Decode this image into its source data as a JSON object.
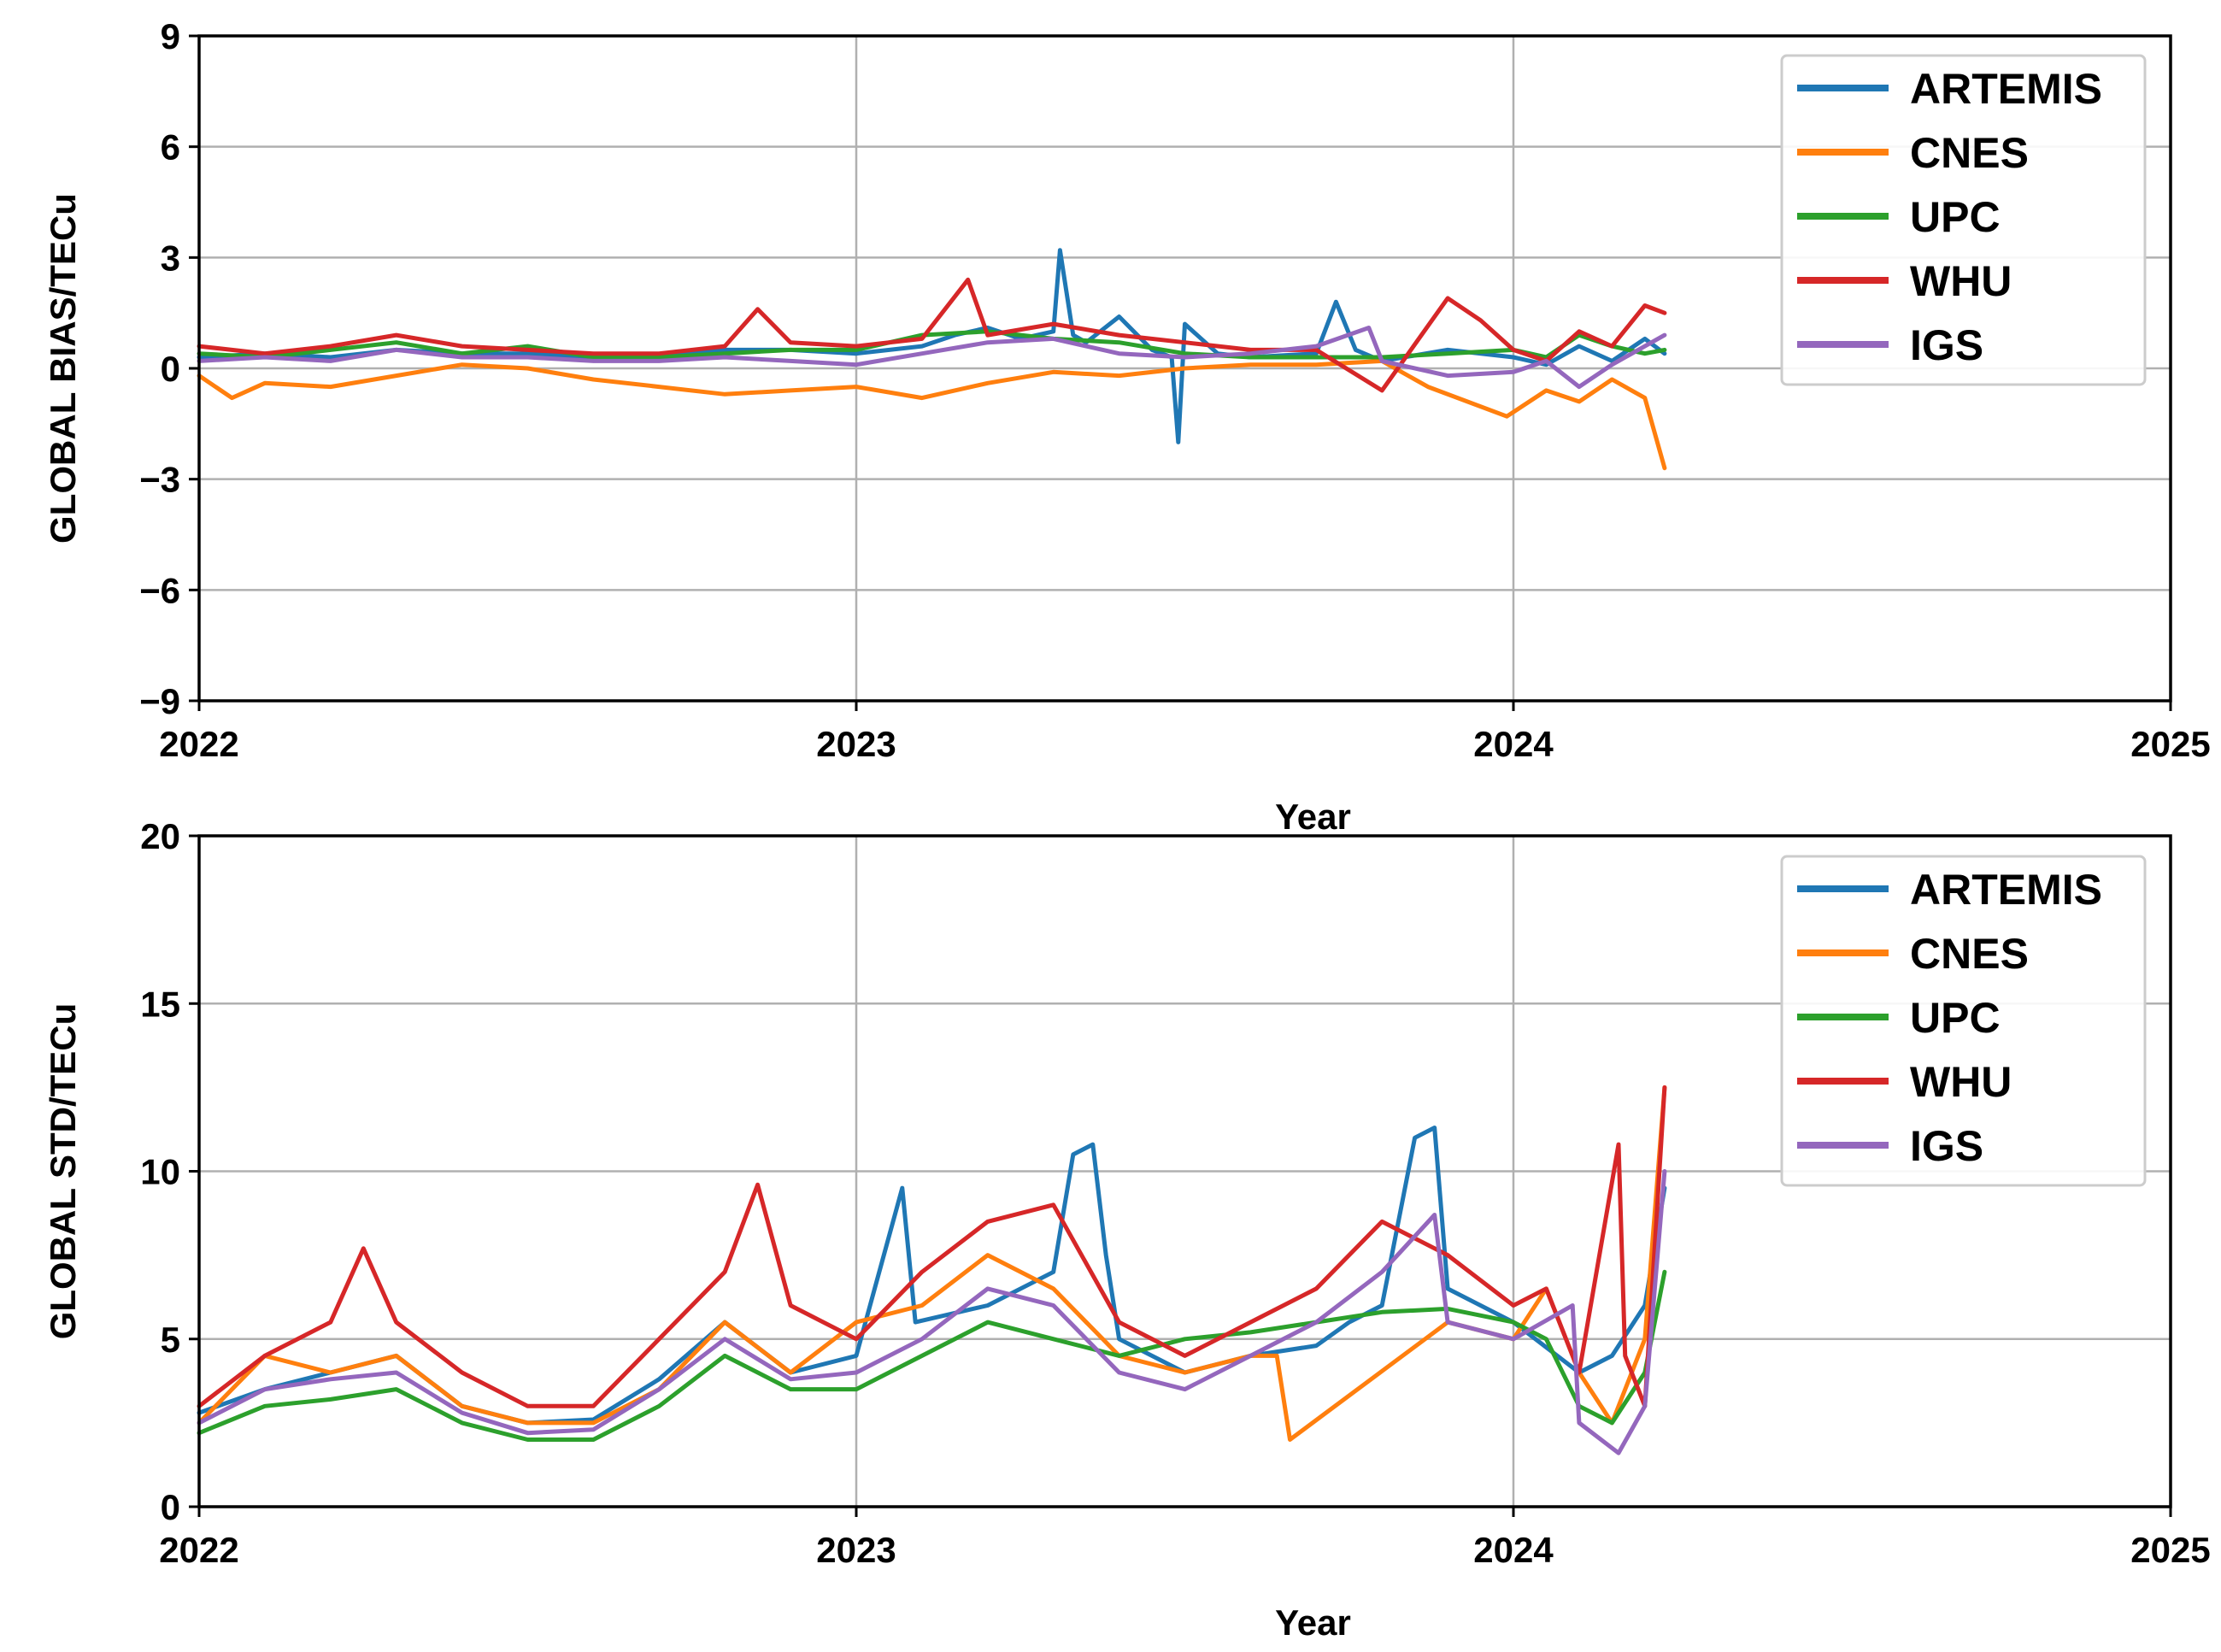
{
  "colors": {
    "ARTEMIS": "#1f77b4",
    "CNES": "#ff7f0e",
    "UPC": "#2ca02c",
    "WHU": "#d62728",
    "IGS": "#9467bd",
    "grid": "#b0b0b0",
    "frame": "#000000",
    "legend_edge": "#cccccc"
  },
  "chart_data": [
    {
      "type": "line",
      "title": "",
      "xlabel": "Year",
      "ylabel": "GLOBAL BIAS/TECu",
      "xlim": [
        2022,
        2025
      ],
      "ylim": [
        -9,
        9
      ],
      "grid": true,
      "legend": "top-right",
      "x_ticks": [
        2022,
        2023,
        2024,
        2025
      ],
      "x_tick_labels": [
        "2022",
        "2023",
        "2024",
        "2025"
      ],
      "y_ticks": [
        -9,
        -6,
        -3,
        0,
        3,
        6,
        9
      ],
      "y_tick_labels": [
        "−9",
        "−6",
        "−3",
        "0",
        "3",
        "6",
        "9"
      ],
      "series": [
        {
          "name": "ARTEMIS",
          "x": [
            2022.0,
            2022.1,
            2022.2,
            2022.3,
            2022.4,
            2022.5,
            2022.6,
            2022.7,
            2022.8,
            2022.9,
            2023.0,
            2023.1,
            2023.15,
            2023.2,
            2023.25,
            2023.3,
            2023.31,
            2023.33,
            2023.35,
            2023.4,
            2023.45,
            2023.48,
            2023.49,
            2023.5,
            2023.55,
            2023.6,
            2023.7,
            2023.73,
            2023.76,
            2023.8,
            2023.9,
            2024.0,
            2024.05,
            2024.1,
            2024.15,
            2024.2,
            2024.23
          ],
          "y": [
            0.3,
            0.4,
            0.3,
            0.5,
            0.4,
            0.4,
            0.3,
            0.3,
            0.5,
            0.5,
            0.4,
            0.6,
            0.9,
            1.1,
            0.8,
            1.0,
            3.2,
            0.9,
            0.7,
            1.4,
            0.5,
            0.3,
            -2.0,
            1.2,
            0.4,
            0.3,
            0.4,
            1.8,
            0.5,
            0.2,
            0.5,
            0.3,
            0.1,
            0.6,
            0.2,
            0.8,
            0.4
          ]
        },
        {
          "name": "CNES",
          "x": [
            2022.0,
            2022.05,
            2022.1,
            2022.2,
            2022.3,
            2022.4,
            2022.5,
            2022.6,
            2022.7,
            2022.8,
            2022.9,
            2023.0,
            2023.1,
            2023.2,
            2023.3,
            2023.4,
            2023.5,
            2023.6,
            2023.7,
            2023.8,
            2023.87,
            2023.99,
            2024.05,
            2024.1,
            2024.15,
            2024.2,
            2024.23
          ],
          "y": [
            -0.2,
            -0.8,
            -0.4,
            -0.5,
            -0.2,
            0.1,
            0.0,
            -0.3,
            -0.5,
            -0.7,
            -0.6,
            -0.5,
            -0.8,
            -0.4,
            -0.1,
            -0.2,
            0.0,
            0.1,
            0.1,
            0.2,
            -0.5,
            -1.3,
            -0.6,
            -0.9,
            -0.3,
            -0.8,
            -2.7
          ]
        },
        {
          "name": "UPC",
          "x": [
            2022.0,
            2022.1,
            2022.2,
            2022.3,
            2022.4,
            2022.5,
            2022.6,
            2022.7,
            2022.8,
            2022.9,
            2023.0,
            2023.1,
            2023.2,
            2023.3,
            2023.4,
            2023.5,
            2023.6,
            2023.7,
            2023.8,
            2023.9,
            2024.0,
            2024.05,
            2024.1,
            2024.15,
            2024.2,
            2024.23
          ],
          "y": [
            0.4,
            0.3,
            0.5,
            0.7,
            0.4,
            0.6,
            0.3,
            0.3,
            0.4,
            0.5,
            0.5,
            0.9,
            1.0,
            0.8,
            0.7,
            0.4,
            0.3,
            0.3,
            0.3,
            0.4,
            0.5,
            0.3,
            0.9,
            0.6,
            0.4,
            0.5
          ]
        },
        {
          "name": "WHU",
          "x": [
            2022.0,
            2022.1,
            2022.2,
            2022.3,
            2022.4,
            2022.5,
            2022.6,
            2022.7,
            2022.8,
            2022.85,
            2022.9,
            2023.0,
            2023.1,
            2023.17,
            2023.2,
            2023.3,
            2023.4,
            2023.5,
            2023.6,
            2023.7,
            2023.8,
            2023.9,
            2023.95,
            2024.0,
            2024.05,
            2024.1,
            2024.15,
            2024.2,
            2024.23
          ],
          "y": [
            0.6,
            0.4,
            0.6,
            0.9,
            0.6,
            0.5,
            0.4,
            0.4,
            0.6,
            1.6,
            0.7,
            0.6,
            0.8,
            2.4,
            0.9,
            1.2,
            0.9,
            0.7,
            0.5,
            0.5,
            -0.6,
            1.9,
            1.3,
            0.5,
            0.2,
            1.0,
            0.6,
            1.7,
            1.5
          ]
        },
        {
          "name": "IGS",
          "x": [
            2022.0,
            2022.1,
            2022.2,
            2022.3,
            2022.4,
            2022.5,
            2022.6,
            2022.7,
            2022.8,
            2022.9,
            2023.0,
            2023.1,
            2023.2,
            2023.3,
            2023.4,
            2023.5,
            2023.6,
            2023.7,
            2023.78,
            2023.8,
            2023.9,
            2024.0,
            2024.05,
            2024.1,
            2024.15,
            2024.2,
            2024.23
          ],
          "y": [
            0.2,
            0.3,
            0.2,
            0.5,
            0.3,
            0.3,
            0.2,
            0.2,
            0.3,
            0.2,
            0.1,
            0.4,
            0.7,
            0.8,
            0.4,
            0.3,
            0.4,
            0.6,
            1.1,
            0.2,
            -0.2,
            -0.1,
            0.2,
            -0.5,
            0.1,
            0.6,
            0.9
          ]
        }
      ]
    },
    {
      "type": "line",
      "title": "",
      "xlabel": "Year",
      "ylabel": "GLOBAL STD/TECu",
      "xlim": [
        2022,
        2025
      ],
      "ylim": [
        0,
        20
      ],
      "grid": true,
      "legend": "top-right",
      "x_ticks": [
        2022,
        2023,
        2024,
        2025
      ],
      "x_tick_labels": [
        "2022",
        "2023",
        "2024",
        "2025"
      ],
      "y_ticks": [
        0,
        5,
        10,
        15,
        20
      ],
      "y_tick_labels": [
        "0",
        "5",
        "10",
        "15",
        "20"
      ],
      "series": [
        {
          "name": "ARTEMIS",
          "x": [
            2022.0,
            2022.1,
            2022.2,
            2022.3,
            2022.4,
            2022.5,
            2022.6,
            2022.7,
            2022.8,
            2022.9,
            2023.0,
            2023.07,
            2023.09,
            2023.2,
            2023.3,
            2023.33,
            2023.36,
            2023.38,
            2023.4,
            2023.5,
            2023.6,
            2023.7,
            2023.75,
            2023.8,
            2023.85,
            2023.88,
            2023.9,
            2024.0,
            2024.1,
            2024.15,
            2024.2,
            2024.23
          ],
          "y": [
            2.8,
            3.5,
            4.0,
            4.5,
            3.0,
            2.5,
            2.6,
            3.8,
            5.5,
            4.0,
            4.5,
            9.5,
            5.5,
            6.0,
            7.0,
            10.5,
            10.8,
            7.5,
            5.0,
            4.0,
            4.5,
            4.8,
            5.5,
            6.0,
            11.0,
            11.3,
            6.5,
            5.5,
            4.0,
            4.5,
            6.0,
            9.5
          ]
        },
        {
          "name": "CNES",
          "x": [
            2022.0,
            2022.1,
            2022.2,
            2022.3,
            2022.4,
            2022.5,
            2022.6,
            2022.7,
            2022.8,
            2022.9,
            2023.0,
            2023.1,
            2023.2,
            2023.3,
            2023.4,
            2023.5,
            2023.6,
            2023.64,
            2023.66,
            2023.9,
            2024.0,
            2024.05,
            2024.1,
            2024.15,
            2024.2,
            2024.23
          ],
          "y": [
            2.5,
            4.5,
            4.0,
            4.5,
            3.0,
            2.5,
            2.5,
            3.5,
            5.5,
            4.0,
            5.5,
            6.0,
            7.5,
            6.5,
            4.5,
            4.0,
            4.5,
            4.5,
            2.0,
            5.5,
            5.0,
            6.5,
            4.0,
            2.5,
            5.0,
            12.5
          ]
        },
        {
          "name": "UPC",
          "x": [
            2022.0,
            2022.1,
            2022.2,
            2022.3,
            2022.4,
            2022.5,
            2022.6,
            2022.7,
            2022.8,
            2022.9,
            2023.0,
            2023.1,
            2023.2,
            2023.3,
            2023.4,
            2023.5,
            2023.6,
            2023.7,
            2023.8,
            2023.9,
            2024.0,
            2024.05,
            2024.1,
            2024.15,
            2024.2,
            2024.23
          ],
          "y": [
            2.2,
            3.0,
            3.2,
            3.5,
            2.5,
            2.0,
            2.0,
            3.0,
            4.5,
            3.5,
            3.5,
            4.5,
            5.5,
            5.0,
            4.5,
            5.0,
            5.2,
            5.5,
            5.8,
            5.9,
            5.5,
            5.0,
            3.0,
            2.5,
            4.0,
            7.0
          ]
        },
        {
          "name": "WHU",
          "x": [
            2022.0,
            2022.1,
            2022.2,
            2022.25,
            2022.3,
            2022.4,
            2022.5,
            2022.6,
            2022.7,
            2022.8,
            2022.85,
            2022.9,
            2023.0,
            2023.1,
            2023.2,
            2023.3,
            2023.4,
            2023.5,
            2023.6,
            2023.7,
            2023.8,
            2023.9,
            2024.0,
            2024.05,
            2024.1,
            2024.16,
            2024.17,
            2024.2,
            2024.23
          ],
          "y": [
            3.0,
            4.5,
            5.5,
            7.7,
            5.5,
            4.0,
            3.0,
            3.0,
            5.0,
            7.0,
            9.6,
            6.0,
            5.0,
            7.0,
            8.5,
            9.0,
            5.5,
            4.5,
            5.5,
            6.5,
            8.5,
            7.5,
            6.0,
            6.5,
            4.0,
            10.8,
            4.5,
            3.0,
            12.5
          ]
        },
        {
          "name": "IGS",
          "x": [
            2022.0,
            2022.1,
            2022.2,
            2022.3,
            2022.4,
            2022.5,
            2022.6,
            2022.7,
            2022.8,
            2022.9,
            2023.0,
            2023.1,
            2023.2,
            2023.3,
            2023.4,
            2023.5,
            2023.6,
            2023.7,
            2023.8,
            2023.88,
            2023.9,
            2024.0,
            2024.09,
            2024.1,
            2024.16,
            2024.2,
            2024.23
          ],
          "y": [
            2.5,
            3.5,
            3.8,
            4.0,
            2.8,
            2.2,
            2.3,
            3.5,
            5.0,
            3.8,
            4.0,
            5.0,
            6.5,
            6.0,
            4.0,
            3.5,
            4.5,
            5.5,
            7.0,
            8.7,
            5.5,
            5.0,
            6.0,
            2.5,
            1.6,
            3.0,
            10.0
          ]
        }
      ]
    }
  ]
}
